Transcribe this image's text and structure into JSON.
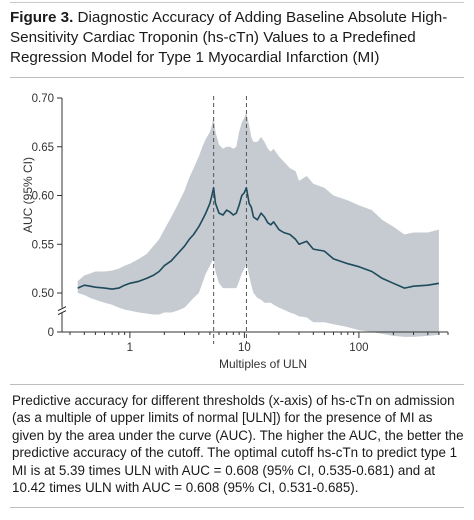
{
  "figure": {
    "label": "Figure 3.",
    "title": "Diagnostic Accuracy of Adding Baseline Absolute High-Sensitivity Cardiac Troponin (hs-cTn) Values to a Predefined Regression Model for Type 1 Myocardial Infarction (MI)",
    "caption": "Predictive accuracy for different thresholds (x-axis) of hs-cTn on admission (as a multiple of upper limits of normal [ULN]) for the presence of MI as given by the area under the curve (AUC). The higher the AUC, the better the predictive accuracy of the cutoff. The optimal cutoff hs-cTn to predict type 1 MI is at 5.39 times ULN with AUC = 0.608 (95% CI, 0.535-0.681) and at 10.42 times ULN with AUC = 0.608 (95% CI, 0.531-0.685)."
  },
  "colors": {
    "band": "#c5cbd0",
    "line": "#1e4a5c",
    "axis": "#333333",
    "cutoff": "#555555"
  },
  "chart_data": {
    "type": "line",
    "title": "",
    "xlabel": "Multiples of ULN",
    "ylabel": "AUC (95% CI)",
    "x_scale": "log",
    "xlim": [
      0.3,
      600
    ],
    "ylim": [
      0.46,
      0.7
    ],
    "y_axis_break": true,
    "x_ticks": [
      1,
      10,
      100
    ],
    "x_tick_labels": [
      "1",
      "10",
      "100"
    ],
    "y_ticks": [
      0.5,
      0.55,
      0.6,
      0.65,
      0.7
    ],
    "y_tick_labels": [
      "0.50",
      "0.55",
      "0.60",
      "0.65",
      "0.70"
    ],
    "y_zero_label": "0",
    "grid": false,
    "cutoffs": [
      5.39,
      10.42
    ],
    "series": [
      {
        "type": "line",
        "x": [
          0.35,
          0.4,
          0.45,
          0.5,
          0.6,
          0.7,
          0.8,
          0.9,
          1.0,
          1.2,
          1.4,
          1.6,
          1.8,
          2.0,
          2.3,
          2.6,
          3.0,
          3.3,
          3.6,
          4.0,
          4.3,
          4.6,
          5.0,
          5.2,
          5.39,
          5.6,
          6.0,
          6.5,
          7.0,
          7.5,
          8.0,
          8.5,
          9.0,
          9.5,
          10.0,
          10.42,
          11.0,
          11.5,
          12.0,
          13.0,
          14.0,
          15.0,
          16.0,
          17.0,
          18.0,
          20.0,
          22.0,
          25.0,
          28.0,
          30.0,
          35.0,
          40.0,
          50.0,
          60.0,
          80.0,
          100.0,
          130.0,
          160.0,
          200.0,
          250.0,
          300.0,
          400.0,
          500.0
        ],
        "y": [
          0.505,
          0.508,
          0.507,
          0.506,
          0.505,
          0.504,
          0.505,
          0.508,
          0.51,
          0.512,
          0.515,
          0.518,
          0.522,
          0.528,
          0.533,
          0.54,
          0.548,
          0.555,
          0.56,
          0.568,
          0.575,
          0.582,
          0.592,
          0.6,
          0.608,
          0.592,
          0.582,
          0.58,
          0.585,
          0.583,
          0.58,
          0.582,
          0.59,
          0.6,
          0.603,
          0.608,
          0.592,
          0.588,
          0.578,
          0.575,
          0.582,
          0.578,
          0.572,
          0.57,
          0.573,
          0.565,
          0.562,
          0.56,
          0.555,
          0.55,
          0.553,
          0.545,
          0.543,
          0.535,
          0.53,
          0.527,
          0.522,
          0.515,
          0.51,
          0.505,
          0.507,
          0.508,
          0.51
        ]
      },
      {
        "type": "area",
        "x": [
          0.35,
          0.4,
          0.45,
          0.5,
          0.6,
          0.7,
          0.8,
          0.9,
          1.0,
          1.2,
          1.4,
          1.6,
          1.8,
          2.0,
          2.3,
          2.6,
          3.0,
          3.3,
          3.6,
          4.0,
          4.3,
          4.6,
          5.0,
          5.2,
          5.39,
          5.6,
          6.0,
          6.5,
          7.0,
          7.5,
          8.0,
          8.5,
          9.0,
          9.5,
          10.0,
          10.42,
          11.0,
          11.5,
          12.0,
          13.0,
          14.0,
          15.0,
          16.0,
          17.0,
          18.0,
          20.0,
          22.0,
          25.0,
          28.0,
          30.0,
          35.0,
          40.0,
          50.0,
          60.0,
          80.0,
          100.0,
          130.0,
          160.0,
          200.0,
          250.0,
          300.0,
          400.0,
          500.0
        ],
        "lower": [
          0.5,
          0.498,
          0.495,
          0.493,
          0.49,
          0.488,
          0.485,
          0.483,
          0.482,
          0.48,
          0.479,
          0.478,
          0.478,
          0.48,
          0.48,
          0.482,
          0.485,
          0.49,
          0.495,
          0.5,
          0.51,
          0.52,
          0.528,
          0.532,
          0.535,
          0.522,
          0.51,
          0.505,
          0.505,
          0.505,
          0.505,
          0.505,
          0.512,
          0.52,
          0.525,
          0.531,
          0.518,
          0.508,
          0.5,
          0.495,
          0.493,
          0.49,
          0.49,
          0.49,
          0.488,
          0.485,
          0.483,
          0.48,
          0.478,
          0.476,
          0.475,
          0.47,
          0.47,
          0.468,
          0.465,
          0.462,
          0.46,
          0.458,
          0.456,
          0.455,
          0.455,
          0.456,
          0.457
        ],
        "upper": [
          0.512,
          0.518,
          0.52,
          0.522,
          0.522,
          0.523,
          0.525,
          0.528,
          0.53,
          0.535,
          0.54,
          0.548,
          0.555,
          0.565,
          0.578,
          0.59,
          0.605,
          0.618,
          0.628,
          0.64,
          0.65,
          0.658,
          0.665,
          0.672,
          0.681,
          0.665,
          0.652,
          0.648,
          0.65,
          0.65,
          0.648,
          0.65,
          0.665,
          0.675,
          0.68,
          0.685,
          0.672,
          0.66,
          0.655,
          0.655,
          0.66,
          0.655,
          0.648,
          0.645,
          0.648,
          0.64,
          0.635,
          0.628,
          0.625,
          0.615,
          0.62,
          0.612,
          0.608,
          0.6,
          0.595,
          0.59,
          0.585,
          0.575,
          0.568,
          0.56,
          0.562,
          0.562,
          0.565
        ]
      }
    ]
  }
}
